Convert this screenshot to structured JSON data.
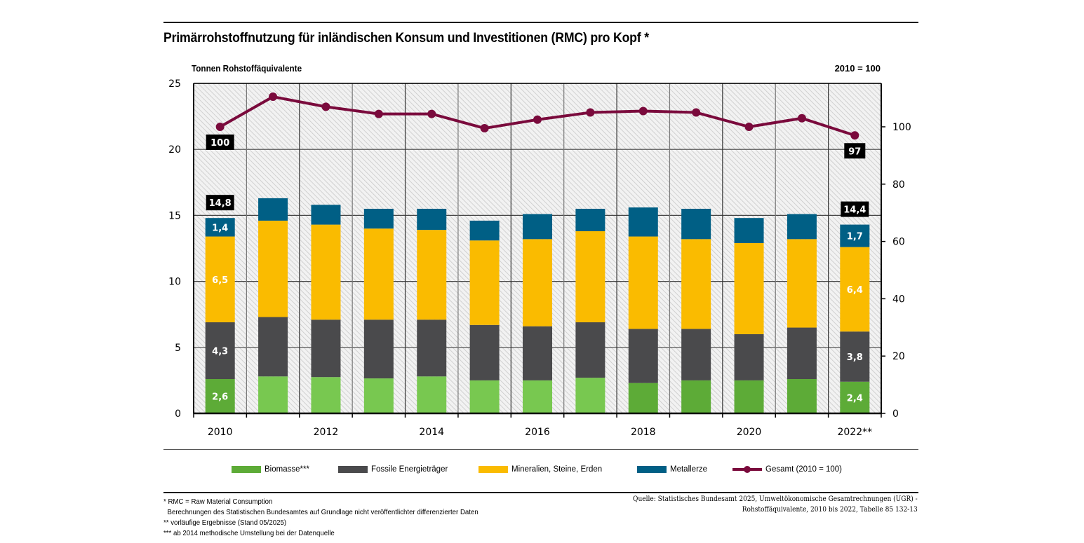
{
  "chart_data": {
    "type": "bar",
    "subtype": "stacked-bar-with-line",
    "title": "Primärrohstoffnutzung für inländischen Konsum und Investitionen (RMC) pro Kopf *",
    "ylabel_left": "Tonnen Rohstoffäquivalente",
    "ylabel_right": "2010 = 100",
    "xlabel": "",
    "categories": [
      "2010",
      "2011",
      "2012",
      "2013",
      "2014",
      "2015",
      "2016",
      "2017",
      "2018",
      "2019",
      "2020",
      "2021",
      "2022**"
    ],
    "x_tick_labels": [
      "2010",
      "",
      "2012",
      "",
      "2014",
      "",
      "2016",
      "",
      "2018",
      "",
      "2020",
      "",
      "2022**"
    ],
    "ylim_left": [
      0,
      25
    ],
    "yticks_left": [
      0,
      5,
      10,
      15,
      20,
      25
    ],
    "ylim_right": [
      0,
      115
    ],
    "yticks_right": [
      0,
      20,
      40,
      60,
      80,
      100
    ],
    "grid": true,
    "background": "hatched",
    "series": [
      {
        "name": "Biomasse***",
        "axis": "left",
        "color": "#78c850",
        "color_alt": "#5dab37",
        "values": [
          2.6,
          2.8,
          2.75,
          2.65,
          2.8,
          2.5,
          2.5,
          2.7,
          2.3,
          2.5,
          2.5,
          2.6,
          2.4
        ],
        "alt_color_indices": [
          0,
          8,
          9,
          10,
          11,
          12
        ]
      },
      {
        "name": "Fossile Energieträger",
        "axis": "left",
        "color": "#4a4a4c",
        "values": [
          4.3,
          4.5,
          4.35,
          4.45,
          4.3,
          4.2,
          4.1,
          4.2,
          4.1,
          3.9,
          3.5,
          3.9,
          3.8
        ]
      },
      {
        "name": "Mineralien, Steine, Erden",
        "axis": "left",
        "color": "#fabb00",
        "values": [
          6.5,
          7.3,
          7.2,
          6.9,
          6.8,
          6.4,
          6.6,
          6.9,
          7.0,
          6.8,
          6.9,
          6.7,
          6.4
        ]
      },
      {
        "name": "Metallerze",
        "axis": "left",
        "color": "#005f85",
        "values": [
          1.4,
          1.7,
          1.5,
          1.5,
          1.6,
          1.5,
          1.9,
          1.7,
          2.2,
          2.3,
          1.9,
          1.9,
          1.7
        ]
      },
      {
        "name": "Gesamt (2010 = 100)",
        "axis": "right",
        "type": "line",
        "color": "#7a0a3c",
        "values": [
          100,
          110.5,
          107,
          104.5,
          104.5,
          99.5,
          102.5,
          105,
          105.5,
          105,
          100,
          103,
          97
        ]
      }
    ],
    "totals": [
      14.8,
      16.3,
      15.8,
      15.5,
      15.5,
      14.6,
      15.1,
      15.5,
      15.6,
      15.5,
      14.8,
      15.1,
      14.4
    ],
    "annotations": [
      {
        "category_index": 0,
        "series": "Biomasse***",
        "text": "2,6"
      },
      {
        "category_index": 0,
        "series": "Fossile Energieträger",
        "text": "4,3"
      },
      {
        "category_index": 0,
        "series": "Mineralien, Steine, Erden",
        "text": "6,5"
      },
      {
        "category_index": 0,
        "series": "Metallerze",
        "text": "1,4"
      },
      {
        "category_index": 0,
        "series": "total",
        "text": "14,8",
        "boxed": true
      },
      {
        "category_index": 0,
        "series": "Gesamt (2010 = 100)",
        "text": "100",
        "boxed": true
      },
      {
        "category_index": 12,
        "series": "Biomasse***",
        "text": "2,4"
      },
      {
        "category_index": 12,
        "series": "Fossile Energieträger",
        "text": "3,8"
      },
      {
        "category_index": 12,
        "series": "Mineralien, Steine, Erden",
        "text": "6,4"
      },
      {
        "category_index": 12,
        "series": "Metallerze",
        "text": "1,7"
      },
      {
        "category_index": 12,
        "series": "total",
        "text": "14,4",
        "boxed": true
      },
      {
        "category_index": 12,
        "series": "Gesamt (2010 = 100)",
        "text": "97",
        "boxed": true
      }
    ],
    "legend_position": "bottom"
  },
  "legend": [
    {
      "label": "Biomasse***",
      "color": "#5dab37",
      "kind": "bar"
    },
    {
      "label": "Fossile Energieträger",
      "color": "#4a4a4c",
      "kind": "bar"
    },
    {
      "label": "Mineralien, Steine, Erden",
      "color": "#fabb00",
      "kind": "bar"
    },
    {
      "label": "Metallerze",
      "color": "#005f85",
      "kind": "bar"
    },
    {
      "label": "Gesamt (2010 = 100)",
      "color": "#7a0a3c",
      "kind": "line"
    }
  ],
  "footnotes": [
    "* RMC = Raw Material Consumption",
    "   Berechnungen des Statistischen Bundesamtes auf Grundlage nicht veröffentlichter differenzierter Daten",
    "** vorläufige Ergebnisse (Stand 05/2025)",
    "*** ab 2014 methodische Umstellung bei der Datenquelle"
  ],
  "source": [
    "Quelle: Statistisches Bundesamt 2025, Umweltökonomische Gesamtrechnungen (UGR) -",
    "Rohstoffäquivalente, 2010 bis 2022, Tabelle 85 132-13"
  ]
}
